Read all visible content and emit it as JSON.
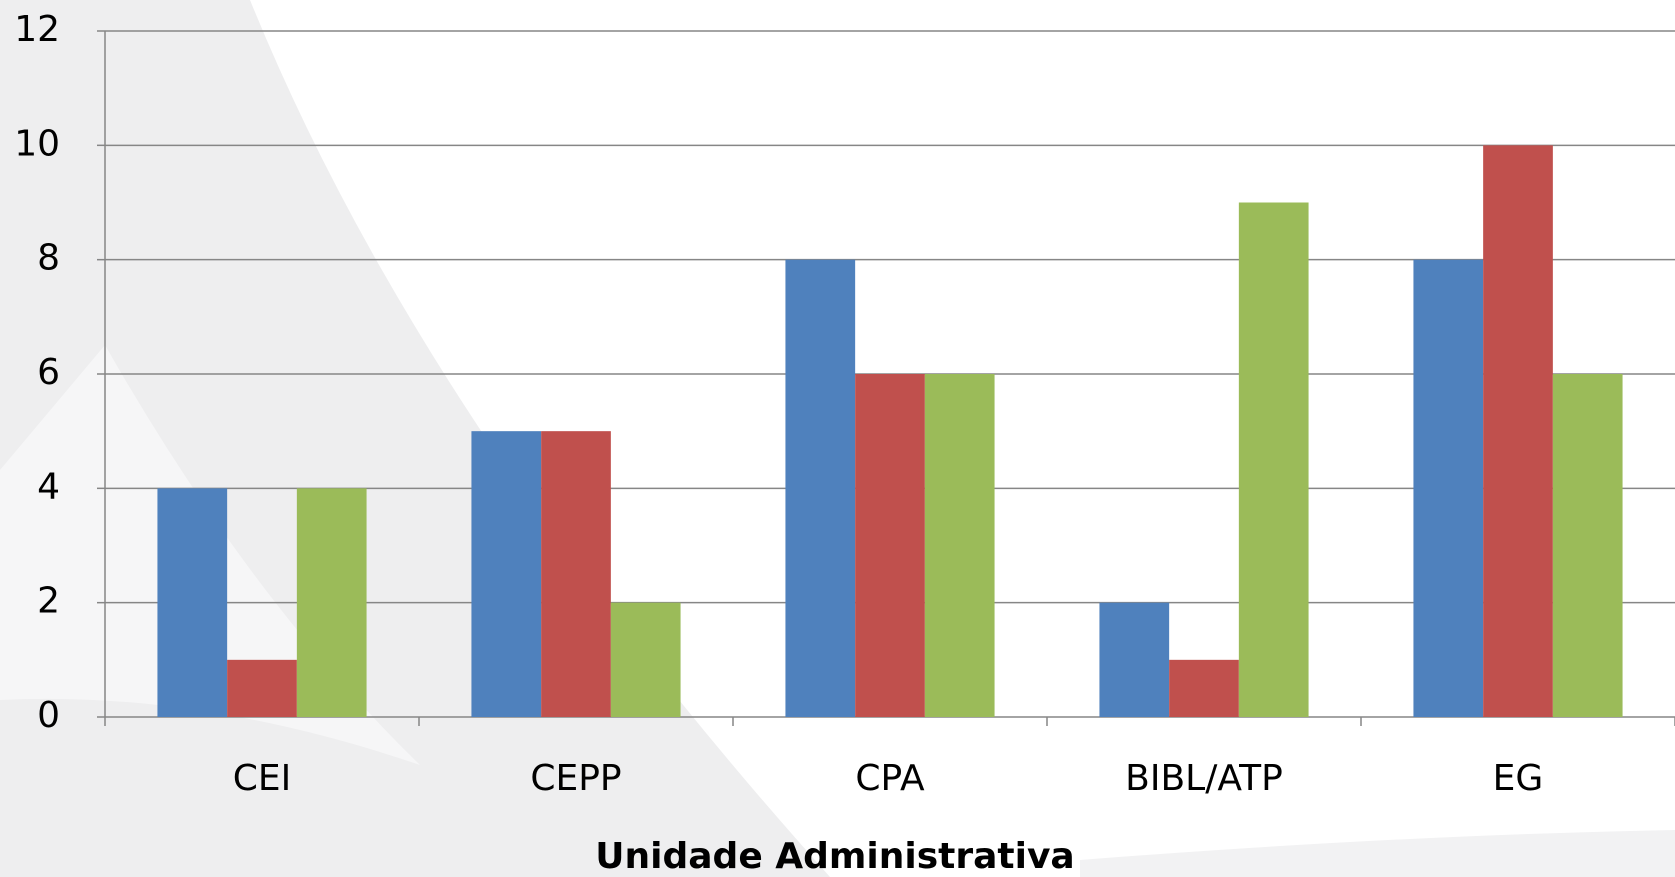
{
  "chart_data": {
    "type": "bar",
    "x_label": "Unidade Administrativa",
    "categories": [
      "CEI",
      "CEPP",
      "CPA",
      "BIBL/ATP",
      "EG"
    ],
    "series": [
      {
        "color": "#4f81bd",
        "values": [
          4,
          5,
          8,
          2,
          8
        ]
      },
      {
        "color": "#c0504d",
        "values": [
          1,
          5,
          6,
          1,
          10
        ]
      },
      {
        "color": "#9bbb59",
        "values": [
          4,
          2,
          6,
          9,
          6
        ]
      }
    ],
    "ylim": [
      0,
      12
    ],
    "yticks": [
      0,
      2,
      4,
      6,
      8,
      10,
      12
    ],
    "grid": true
  }
}
